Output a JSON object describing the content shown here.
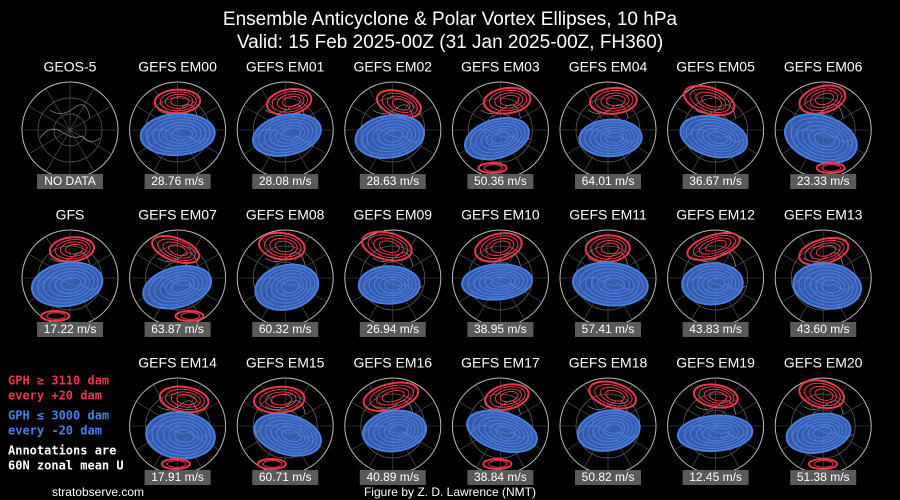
{
  "header": {
    "title": "Ensemble Anticyclone & Polar Vortex Ellipses, 10 hPa",
    "subtitle": "Valid: 15 Feb 2025-00Z  (31 Jan 2025-00Z, FH360)"
  },
  "rows": [
    [
      {
        "title": "GEOS-5",
        "annotation": "NO DATA"
      },
      {
        "title": "GEFS EM00",
        "annotation": "28.76 m/s"
      },
      {
        "title": "GEFS EM01",
        "annotation": "28.08 m/s"
      },
      {
        "title": "GEFS EM02",
        "annotation": "28.63 m/s"
      },
      {
        "title": "GEFS EM03",
        "annotation": "50.36 m/s"
      },
      {
        "title": "GEFS EM04",
        "annotation": "64.01 m/s"
      },
      {
        "title": "GEFS EM05",
        "annotation": "36.67 m/s"
      },
      {
        "title": "GEFS EM06",
        "annotation": "23.33 m/s"
      }
    ],
    [
      {
        "title": "GFS",
        "annotation": "17.22 m/s"
      },
      {
        "title": "GEFS EM07",
        "annotation": "63.87 m/s"
      },
      {
        "title": "GEFS EM08",
        "annotation": "60.32 m/s"
      },
      {
        "title": "GEFS EM09",
        "annotation": "26.94 m/s"
      },
      {
        "title": "GEFS EM10",
        "annotation": "38.95 m/s"
      },
      {
        "title": "GEFS EM11",
        "annotation": "57.41 m/s"
      },
      {
        "title": "GEFS EM12",
        "annotation": "43.83 m/s"
      },
      {
        "title": "GEFS EM13",
        "annotation": "43.60 m/s"
      }
    ],
    [
      {
        "title": "GEFS EM14",
        "annotation": "17.91 m/s"
      },
      {
        "title": "GEFS EM15",
        "annotation": "60.71 m/s"
      },
      {
        "title": "GEFS EM16",
        "annotation": "40.89 m/s"
      },
      {
        "title": "GEFS EM17",
        "annotation": "38.84 m/s"
      },
      {
        "title": "GEFS EM18",
        "annotation": "50.82 m/s"
      },
      {
        "title": "GEFS EM19",
        "annotation": "12.45 m/s"
      },
      {
        "title": "GEFS EM20",
        "annotation": "51.38 m/s"
      }
    ]
  ],
  "legend": {
    "red": [
      "GPH ≥ 3110 dam",
      "every +20 dam"
    ],
    "blue": [
      "GPH ≤ 3000 dam",
      "every -20 dam"
    ],
    "white": [
      "Annotations are",
      "60N zonal mean U"
    ]
  },
  "footer": {
    "left": "stratobserve.com",
    "right": "Figure by Z. D. Lawrence (NMT)"
  }
}
